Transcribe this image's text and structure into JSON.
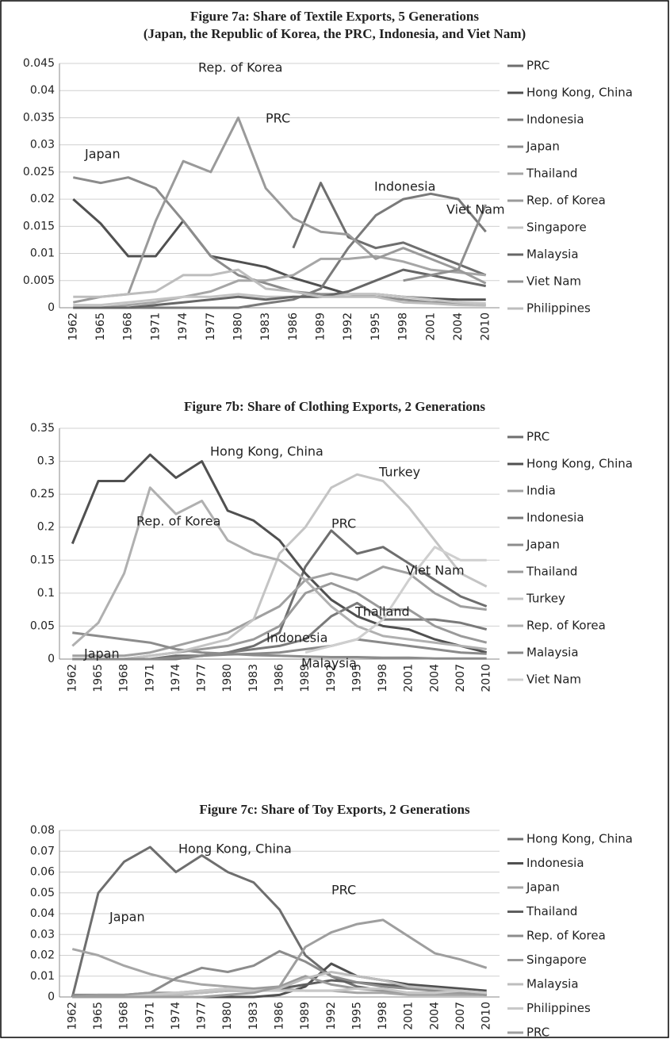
{
  "chart_data": [
    {
      "type": "line",
      "title": "Figure 7a: Share of Textile Exports, 5 Generations",
      "subtitle": "(Japan, the Republic of Korea, the PRC, Indonesia, and Viet Nam)",
      "categories": [
        "1962",
        "1965",
        "1968",
        "1971",
        "1974",
        "1977",
        "1980",
        "1983",
        "1986",
        "1989",
        "1992",
        "1995",
        "1998",
        "2001",
        "2004",
        "2010"
      ],
      "ylim": [
        0,
        0.045
      ],
      "yticks": [
        0,
        0.005,
        0.01,
        0.015,
        0.02,
        0.025,
        0.03,
        0.035,
        0.04,
        0.045
      ],
      "grid": true,
      "series": [
        {
          "name": "PRC",
          "color": "#6e6e6e",
          "values": [
            null,
            null,
            null,
            null,
            null,
            null,
            null,
            null,
            0.011,
            0.023,
            0.013,
            0.011,
            0.012,
            0.01,
            0.008,
            0.006
          ]
        },
        {
          "name": "Hong Kong, China",
          "color": "#505050",
          "values": [
            0.02,
            0.0155,
            0.0095,
            0.0095,
            0.016,
            0.0095,
            0.0085,
            0.0075,
            0.0055,
            0.004,
            0.0025,
            0.0025,
            0.002,
            0.0017,
            0.0015,
            0.0015
          ]
        },
        {
          "name": "Indonesia",
          "color": "#7a7a7a",
          "values": [
            0,
            0,
            0,
            0,
            0,
            0,
            0,
            0.0008,
            0.0015,
            0.0035,
            0.011,
            0.017,
            0.02,
            0.021,
            0.02,
            0.014
          ]
        },
        {
          "name": "Japan",
          "color": "#8c8c8c",
          "values": [
            0.024,
            0.023,
            0.024,
            0.022,
            0.016,
            0.0095,
            0.006,
            0.0045,
            0.003,
            0.0025,
            0.0025,
            0.002,
            0.0015,
            0.001,
            0.0008,
            0.0005
          ]
        },
        {
          "name": "Thailand",
          "color": "#a6a6a6",
          "values": [
            0,
            0,
            0.0005,
            0.001,
            0.002,
            0.003,
            0.005,
            0.005,
            0.006,
            0.009,
            0.009,
            0.0095,
            0.0085,
            0.007,
            0.0065,
            0.006
          ]
        },
        {
          "name": "Rep. of Korea",
          "color": "#9a9a9a",
          "values": [
            0.001,
            0.002,
            0.0025,
            0.016,
            0.027,
            0.025,
            0.035,
            0.022,
            0.0165,
            0.014,
            0.0135,
            0.009,
            0.011,
            0.009,
            0.007,
            0.0045
          ]
        },
        {
          "name": "Singapore",
          "color": "#c4c4c4",
          "values": [
            0.0005,
            0.0005,
            0.001,
            0.0015,
            0.002,
            0.002,
            0.0025,
            0.002,
            0.002,
            0.002,
            0.0025,
            0.0025,
            0.002,
            0.0015,
            0.001,
            0.0008
          ]
        },
        {
          "name": "Malaysia",
          "color": "#666666",
          "values": [
            0,
            0,
            0,
            0.0005,
            0.001,
            0.0015,
            0.002,
            0.0015,
            0.002,
            0.002,
            0.003,
            0.005,
            0.007,
            0.006,
            0.005,
            0.004
          ]
        },
        {
          "name": "Viet Nam",
          "color": "#8f8f8f",
          "values": [
            null,
            null,
            null,
            null,
            null,
            null,
            null,
            null,
            null,
            null,
            null,
            null,
            0.005,
            0.006,
            0.007,
            0.019
          ]
        },
        {
          "name": "Philippines",
          "color": "#bdbdbd",
          "values": [
            0.002,
            0.002,
            0.0025,
            0.003,
            0.006,
            0.006,
            0.007,
            0.0035,
            0.003,
            0.002,
            0.002,
            0.002,
            0.001,
            0.0008,
            0.0005,
            0.0004
          ]
        }
      ],
      "annotations": [
        "Japan",
        "Rep. of Korea",
        "PRC",
        "Indonesia",
        "Viet Nam"
      ]
    },
    {
      "type": "line",
      "title": "Figure 7b:  Share of Clothing Exports, 2 Generations",
      "categories": [
        "1962",
        "1965",
        "1968",
        "1971",
        "1974",
        "1977",
        "1980",
        "1983",
        "1986",
        "1989",
        "1992",
        "1995",
        "1998",
        "2001",
        "2004",
        "2007",
        "2010"
      ],
      "ylim": [
        0,
        0.35
      ],
      "yticks": [
        0,
        0.05,
        0.1,
        0.15,
        0.2,
        0.25,
        0.3,
        0.35
      ],
      "grid": true,
      "series": [
        {
          "name": "PRC",
          "color": "#6e6e6e",
          "values": [
            0,
            0,
            0,
            0,
            0.005,
            0.005,
            0.01,
            0.02,
            0.04,
            0.14,
            0.195,
            0.16,
            0.17,
            0.145,
            0.12,
            0.095,
            0.08
          ]
        },
        {
          "name": "Hong Kong, China",
          "color": "#505050",
          "values": [
            0.175,
            0.27,
            0.27,
            0.31,
            0.275,
            0.3,
            0.225,
            0.21,
            0.18,
            0.13,
            0.09,
            0.065,
            0.05,
            0.045,
            0.03,
            0.02,
            0.01
          ]
        },
        {
          "name": "India",
          "color": "#a0a0a0",
          "values": [
            0.005,
            0.005,
            0.005,
            0.01,
            0.02,
            0.03,
            0.04,
            0.06,
            0.08,
            0.12,
            0.13,
            0.12,
            0.14,
            0.13,
            0.1,
            0.08,
            0.075
          ]
        },
        {
          "name": "Indonesia",
          "color": "#7a7a7a",
          "values": [
            0,
            0,
            0,
            0,
            0,
            0.005,
            0.01,
            0.015,
            0.02,
            0.03,
            0.065,
            0.085,
            0.06,
            0.06,
            0.06,
            0.055,
            0.045
          ]
        },
        {
          "name": "Japan",
          "color": "#8c8c8c",
          "values": [
            0.04,
            0.035,
            0.03,
            0.025,
            0.015,
            0.01,
            0.008,
            0.006,
            0.005,
            0.004,
            0.003,
            0.003,
            0.002,
            0.002,
            0.001,
            0.001,
            0.001
          ]
        },
        {
          "name": "Thailand",
          "color": "#9a9a9a",
          "values": [
            0,
            0,
            0,
            0.005,
            0.01,
            0.015,
            0.02,
            0.03,
            0.05,
            0.1,
            0.115,
            0.1,
            0.075,
            0.075,
            0.05,
            0.035,
            0.025
          ]
        },
        {
          "name": "Turkey",
          "color": "#c4c4c4",
          "values": [
            0,
            0,
            0,
            0.005,
            0.01,
            0.02,
            0.03,
            0.06,
            0.16,
            0.2,
            0.26,
            0.28,
            0.27,
            0.23,
            0.18,
            0.13,
            0.11
          ]
        },
        {
          "name": "Rep. of Korea",
          "color": "#b0b0b0",
          "values": [
            0.02,
            0.055,
            0.13,
            0.26,
            0.22,
            0.24,
            0.18,
            0.16,
            0.15,
            0.12,
            0.08,
            0.05,
            0.035,
            0.03,
            0.025,
            0.02,
            0.015
          ]
        },
        {
          "name": "Malaysia",
          "color": "#8a8a8a",
          "values": [
            0,
            0,
            0,
            0,
            0.002,
            0.005,
            0.007,
            0.008,
            0.01,
            0.015,
            0.02,
            0.03,
            0.025,
            0.02,
            0.015,
            0.01,
            0.008
          ]
        },
        {
          "name": "Viet Nam",
          "color": "#cfcfcf",
          "values": [
            null,
            null,
            null,
            null,
            null,
            null,
            null,
            null,
            null,
            0.01,
            0.02,
            0.03,
            0.06,
            0.12,
            0.17,
            0.15,
            0.15
          ]
        }
      ],
      "annotations": [
        "Hong Kong, China",
        "Turkey",
        "Rep. of Korea",
        "PRC",
        "Viet Nam",
        "Thailand",
        "Indonesia",
        "Japan",
        "Malaysia"
      ]
    },
    {
      "type": "line",
      "title": "Figure 7c:  Share of Toy Exports, 2 Generations",
      "categories": [
        "1962",
        "1965",
        "1968",
        "1971",
        "1974",
        "1977",
        "1980",
        "1983",
        "1986",
        "1989",
        "1992",
        "1995",
        "1998",
        "2001",
        "2004",
        "2007",
        "2010"
      ],
      "ylim": [
        0,
        0.08
      ],
      "yticks": [
        0,
        0.01,
        0.02,
        0.03,
        0.04,
        0.05,
        0.06,
        0.07,
        0.08
      ],
      "grid": true,
      "series": [
        {
          "name": "Hong Kong, China",
          "color": "#6e6e6e",
          "values": [
            0,
            0.05,
            0.065,
            0.072,
            0.06,
            0.068,
            0.06,
            0.055,
            0.042,
            0.02,
            0.01,
            0.005,
            0.003,
            0.002,
            0.002,
            0.002,
            0.001
          ]
        },
        {
          "name": "Indonesia",
          "color": "#505050",
          "values": [
            0,
            0,
            0,
            0,
            0,
            0,
            0,
            0,
            0.001,
            0.005,
            0.016,
            0.01,
            0.008,
            0.006,
            0.005,
            0.004,
            0.003
          ]
        },
        {
          "name": "Japan",
          "color": "#a6a6a6",
          "values": [
            0.023,
            0.02,
            0.015,
            0.011,
            0.008,
            0.006,
            0.005,
            0.004,
            0.004,
            0.003,
            0.003,
            0.002,
            0.002,
            0.001,
            0.001,
            0.001,
            0.001
          ]
        },
        {
          "name": "Thailand",
          "color": "#5e5e5e",
          "values": [
            0,
            0,
            0,
            0,
            0.001,
            0.002,
            0.003,
            0.003,
            0.004,
            0.006,
            0.008,
            0.007,
            0.006,
            0.005,
            0.004,
            0.003,
            0.002
          ]
        },
        {
          "name": "Rep. of Korea",
          "color": "#8c8c8c",
          "values": [
            0.001,
            0.001,
            0.001,
            0.002,
            0.009,
            0.014,
            0.012,
            0.015,
            0.022,
            0.017,
            0.01,
            0.007,
            0.005,
            0.004,
            0.003,
            0.002,
            0.001
          ]
        },
        {
          "name": "Singapore",
          "color": "#9a9a9a",
          "values": [
            0,
            0.001,
            0.001,
            0.002,
            0.002,
            0.003,
            0.004,
            0.004,
            0.005,
            0.01,
            0.006,
            0.004,
            0.003,
            0.002,
            0.002,
            0.002,
            0.001
          ]
        },
        {
          "name": "Malaysia",
          "color": "#bdbdbd",
          "values": [
            0,
            0,
            0,
            0,
            0.001,
            0.002,
            0.003,
            0.003,
            0.004,
            0.009,
            0.012,
            0.01,
            0.008,
            0.005,
            0.004,
            0.003,
            0.002
          ]
        },
        {
          "name": "Philippines",
          "color": "#c8c8c8",
          "values": [
            0,
            0,
            0,
            0.001,
            0.002,
            0.003,
            0.004,
            0.003,
            0.003,
            0.003,
            0.003,
            0.004,
            0.004,
            0.002,
            0.002,
            0.003,
            0.002
          ]
        },
        {
          "name": "PRC",
          "color": "#9e9e9e",
          "values": [
            0,
            0,
            0,
            0,
            0,
            0,
            0.001,
            0.002,
            0.005,
            0.024,
            0.031,
            0.035,
            0.037,
            0.029,
            0.021,
            0.018,
            0.014
          ]
        }
      ],
      "annotations": [
        "Hong Kong, China",
        "PRC",
        "Japan"
      ]
    }
  ]
}
